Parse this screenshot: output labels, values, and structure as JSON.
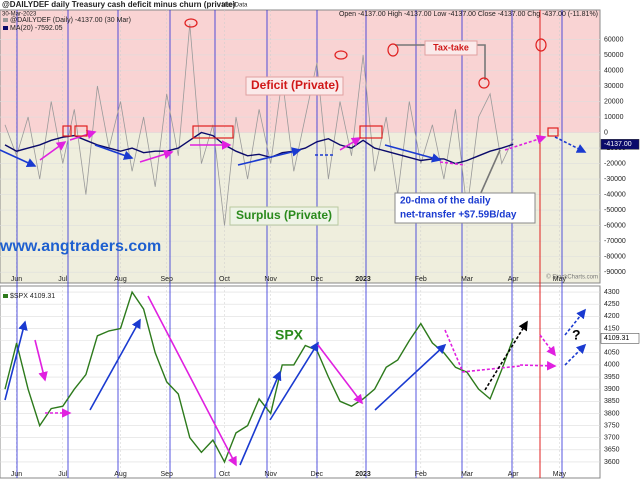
{
  "chart_data": [
    {
      "type": "line",
      "title": "@DAILYDEF daily Treasury cash deficit minus churn (private)",
      "source": "UserData",
      "date": "30-Mar-2023",
      "quote": "Open -4137.00  High -4137.00  Low -4137.00  Close -4137.00  Chg -437.00 (-11.81%)",
      "credit": "© StockCharts.com",
      "last_label": "-4137.00",
      "annotations": {
        "deficit": "Deficit (Private)",
        "surplus": "Surplus (Private)",
        "tax": "Tax-take",
        "dma_line1": "20-dma of the daily",
        "dma_line2": "net-transfer +$7.59B/day",
        "site": "www.angtraders.com"
      },
      "categories": [
        null,
        "Jun",
        null,
        null,
        null,
        "Jul",
        null,
        null,
        null,
        null,
        "Aug",
        null,
        null,
        null,
        "Sep",
        null,
        null,
        null,
        null,
        "Oct",
        null,
        null,
        null,
        "Nov",
        null,
        null,
        null,
        "Dec",
        null,
        null,
        null,
        "2023",
        null,
        null,
        null,
        null,
        "Feb",
        null,
        null,
        null,
        "Mar",
        null,
        null,
        null,
        "Apr",
        null,
        null,
        null,
        "May"
      ],
      "series": [
        {
          "name": "@DAILYDEF (Daily) -4137.00 (30 Mar)",
          "color": "#9a9a9a",
          "values": [
            5000,
            -15000,
            10000,
            -30000,
            20000,
            -20000,
            15000,
            -40000,
            30000,
            -10000,
            20000,
            -25000,
            10000,
            -35000,
            25000,
            -15000,
            70000,
            -20000,
            5000,
            -60000,
            10000,
            -30000,
            15000,
            -20000,
            35000,
            -25000,
            10000,
            45000,
            -30000,
            20000,
            -15000,
            50000,
            -25000,
            10000,
            -40000,
            20000,
            -20000,
            5000,
            -30000,
            15000,
            -50000,
            10000,
            25000,
            -20000,
            -4137,
            null,
            null,
            null,
            null
          ]
        },
        {
          "name": "MA(20) -7592.05",
          "color": "#0a0a6a",
          "values": [
            -8000,
            -12000,
            -10000,
            -8000,
            -5000,
            -3000,
            -2000,
            -5000,
            -8000,
            -10000,
            -12000,
            -10000,
            -13000,
            -12000,
            -12000,
            -10000,
            -5000,
            0,
            -2000,
            -8000,
            -12000,
            -15000,
            -14000,
            -16000,
            -13000,
            -12000,
            -10000,
            -6000,
            -4000,
            -8000,
            -10000,
            -5000,
            -10000,
            -12000,
            -14000,
            -16000,
            -18000,
            -17000,
            -17000,
            -20000,
            -18000,
            -15000,
            -12000,
            -10000,
            -7592.05,
            null,
            null,
            null,
            null
          ]
        }
      ],
      "ylim": [
        -97000,
        79000
      ],
      "yticks": [
        60000,
        50000,
        40000,
        30000,
        20000,
        10000,
        0,
        -10000,
        -20000,
        -30000,
        -40000,
        -50000,
        -60000,
        -70000,
        -80000,
        -90000
      ]
    },
    {
      "type": "line",
      "last_label": "4109.31",
      "annotations": {
        "spx": "SPX",
        "question": "?"
      },
      "categories": [
        null,
        "Jun",
        null,
        null,
        null,
        "Jul",
        null,
        null,
        null,
        null,
        "Aug",
        null,
        null,
        null,
        "Sep",
        null,
        null,
        null,
        null,
        "Oct",
        null,
        null,
        null,
        "Nov",
        null,
        null,
        null,
        "Dec",
        null,
        null,
        null,
        "2023",
        null,
        null,
        null,
        null,
        "Feb",
        null,
        null,
        null,
        "Mar",
        null,
        null,
        null,
        "Apr",
        null,
        null,
        null,
        "May"
      ],
      "series": [
        {
          "name": "$SPX 4109.31",
          "color": "#2d7a1c",
          "values": [
            3900,
            4090,
            3900,
            3750,
            3820,
            3830,
            3900,
            3960,
            4120,
            4140,
            4150,
            4300,
            4230,
            4050,
            3930,
            3880,
            3700,
            3640,
            3690,
            3600,
            3720,
            3750,
            3860,
            3800,
            4000,
            4000,
            4080,
            4060,
            3950,
            3850,
            3830,
            3860,
            3900,
            3990,
            4020,
            4100,
            4170,
            4090,
            4050,
            3990,
            3970,
            3900,
            3860,
            3980,
            4109.31,
            null,
            null,
            null,
            null
          ]
        }
      ],
      "ylim": [
        3534,
        4325
      ],
      "yticks": [
        4300,
        4250,
        4200,
        4150,
        4100,
        4050,
        4000,
        3950,
        3900,
        3850,
        3800,
        3750,
        3700,
        3650,
        3600
      ]
    }
  ]
}
